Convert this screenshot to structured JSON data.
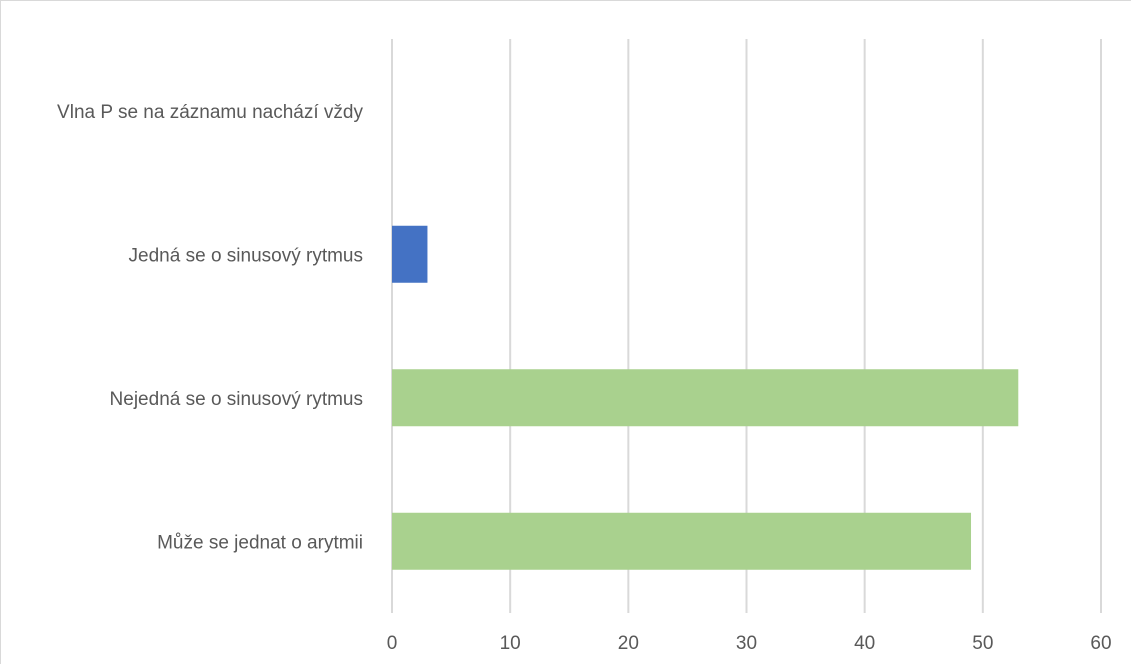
{
  "chart_data": {
    "type": "bar",
    "orientation": "horizontal",
    "categories": [
      "Vlna P se na záznamu nachází vždy",
      "Jedná se o sinusový rytmus",
      "Nejedná se o sinusový rytmus",
      "Může se jednat o arytmii"
    ],
    "values": [
      0,
      3,
      53,
      49
    ],
    "bar_colors": [
      "#4472c4",
      "#4472c4",
      "#a9d18e",
      "#a9d18e"
    ],
    "xlim": [
      0,
      60
    ],
    "x_ticks": [
      "0",
      "10",
      "20",
      "30",
      "40",
      "50",
      "60"
    ],
    "grid": true,
    "title": "",
    "xlabel": "",
    "ylabel": ""
  }
}
